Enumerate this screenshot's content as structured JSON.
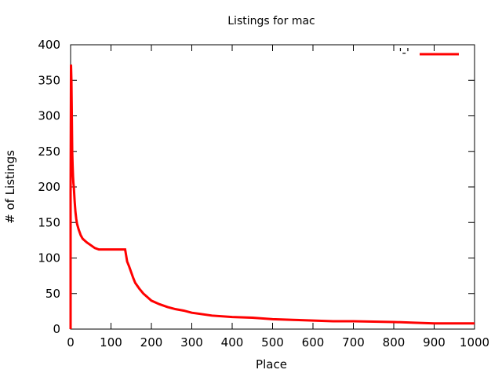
{
  "chart_data": {
    "type": "line",
    "title": "Listings for mac",
    "xlabel": "Place",
    "ylabel": "# of Listings",
    "xlim": [
      0,
      1000
    ],
    "ylim": [
      0,
      400
    ],
    "x_ticks": [
      "0",
      "100",
      "200",
      "300",
      "400",
      "500",
      "600",
      "700",
      "800",
      "900",
      "1000"
    ],
    "y_ticks": [
      "0",
      "50",
      "100",
      "150",
      "200",
      "250",
      "300",
      "350",
      "400"
    ],
    "grid": false,
    "legend": {
      "position": "top-right",
      "entries": [
        {
          "label": "'-'"
        }
      ]
    },
    "series": [
      {
        "color": "#ff0000",
        "x": [
          0,
          1,
          2,
          3,
          4,
          5,
          6,
          7,
          8,
          10,
          12,
          14,
          16,
          20,
          25,
          30,
          40,
          50,
          60,
          70,
          80,
          90,
          100,
          110,
          120,
          130,
          135,
          140,
          145,
          150,
          155,
          160,
          170,
          180,
          190,
          200,
          220,
          240,
          260,
          280,
          300,
          350,
          400,
          450,
          500,
          550,
          600,
          650,
          700,
          800,
          850,
          900,
          1000
        ],
        "y": [
          190,
          372,
          350,
          300,
          250,
          230,
          215,
          205,
          200,
          180,
          165,
          155,
          148,
          140,
          132,
          127,
          122,
          118,
          114,
          112,
          112,
          112,
          112,
          112,
          112,
          112,
          112,
          95,
          88,
          80,
          72,
          65,
          57,
          50,
          45,
          40,
          35,
          31,
          28,
          26,
          23,
          19,
          17,
          16,
          14,
          13,
          12,
          11,
          11,
          10,
          9,
          8,
          8
        ]
      }
    ]
  }
}
